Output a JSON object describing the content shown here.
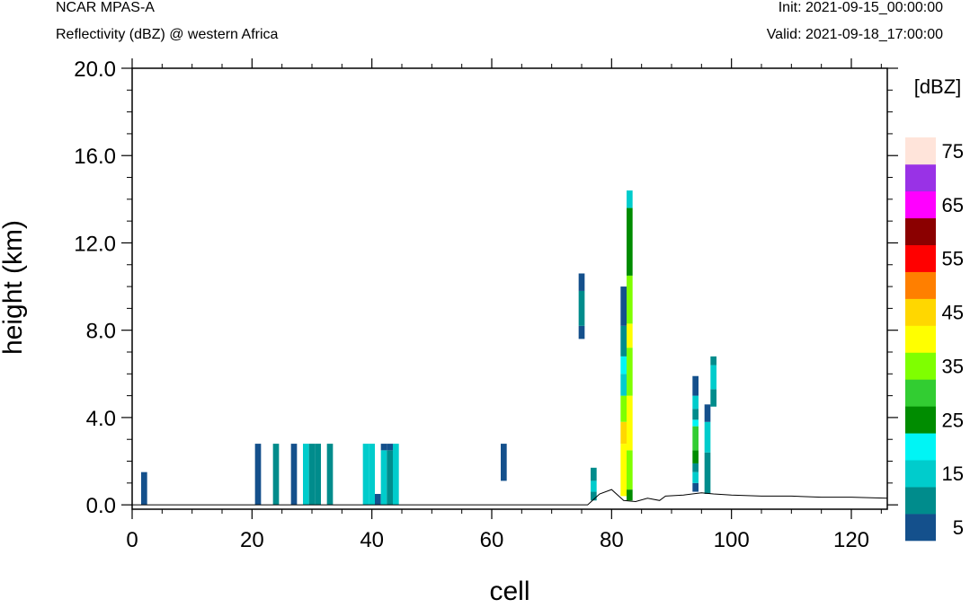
{
  "header": {
    "left_title": "NCAR MPAS-A",
    "left_subtitle": "Reflectivity (dBZ) @ western Africa",
    "right_title": "Init: 2021-09-15_00:00:00",
    "right_subtitle": "Valid: 2021-09-18_17:00:00"
  },
  "chart_data": {
    "type": "heatmap",
    "xlabel": "cell",
    "ylabel": "height (km)",
    "xlim": [
      0,
      126
    ],
    "ylim": [
      -0.2,
      20.0
    ],
    "x_ticks": [
      "0",
      "20",
      "40",
      "60",
      "80",
      "100",
      "120"
    ],
    "y_ticks": [
      "0.0",
      "4.0",
      "8.0",
      "12.0",
      "16.0",
      "20.0"
    ],
    "colorbar": {
      "unit": "[dBZ]",
      "levels": [
        5,
        10,
        15,
        20,
        25,
        30,
        35,
        40,
        45,
        50,
        55,
        60,
        65,
        70,
        75
      ],
      "labels": [
        "5",
        "15",
        "25",
        "35",
        "45",
        "55",
        "65",
        "75"
      ],
      "colors": [
        "#14508c",
        "#008c8c",
        "#00cccc",
        "#00f5f5",
        "#008c00",
        "#32cd32",
        "#7fff00",
        "#ffff00",
        "#ffd700",
        "#ff7f00",
        "#ff0000",
        "#8b0000",
        "#ff00ff",
        "#9932e6",
        "#ffe4da"
      ]
    },
    "columns": [
      {
        "cell": 2,
        "segments": [
          [
            0.0,
            1.5,
            5
          ]
        ]
      },
      {
        "cell": 21,
        "segments": [
          [
            0.0,
            2.8,
            5
          ]
        ]
      },
      {
        "cell": 24,
        "segments": [
          [
            0.0,
            2.8,
            10
          ]
        ]
      },
      {
        "cell": 27,
        "segments": [
          [
            0.0,
            2.8,
            5
          ]
        ]
      },
      {
        "cell": 29,
        "segments": [
          [
            0.0,
            2.8,
            15
          ]
        ]
      },
      {
        "cell": 30,
        "segments": [
          [
            0.0,
            2.8,
            10
          ]
        ]
      },
      {
        "cell": 31,
        "segments": [
          [
            0.0,
            2.8,
            10
          ]
        ]
      },
      {
        "cell": 33,
        "segments": [
          [
            0.0,
            2.8,
            10
          ]
        ]
      },
      {
        "cell": 39,
        "segments": [
          [
            0.0,
            2.8,
            15
          ]
        ]
      },
      {
        "cell": 40,
        "segments": [
          [
            0.0,
            2.8,
            15
          ]
        ]
      },
      {
        "cell": 41,
        "segments": [
          [
            0.0,
            0.5,
            5
          ]
        ]
      },
      {
        "cell": 42,
        "segments": [
          [
            0.0,
            2.5,
            15
          ],
          [
            2.5,
            2.8,
            5
          ]
        ]
      },
      {
        "cell": 43,
        "segments": [
          [
            0.0,
            2.5,
            10
          ],
          [
            2.5,
            2.8,
            5
          ]
        ]
      },
      {
        "cell": 44,
        "segments": [
          [
            0.0,
            2.8,
            15
          ]
        ]
      },
      {
        "cell": 62,
        "segments": [
          [
            1.1,
            2.8,
            5
          ]
        ]
      },
      {
        "cell": 75,
        "segments": [
          [
            7.6,
            8.2,
            5
          ],
          [
            8.2,
            9.8,
            10
          ],
          [
            9.8,
            10.6,
            5
          ]
        ]
      },
      {
        "cell": 77,
        "segments": [
          [
            0.2,
            0.6,
            10
          ],
          [
            0.6,
            1.1,
            15
          ],
          [
            1.1,
            1.7,
            10
          ]
        ]
      },
      {
        "cell": 82,
        "segments": [
          [
            0.4,
            2.8,
            40
          ],
          [
            2.8,
            3.8,
            45
          ],
          [
            3.8,
            5.0,
            35
          ],
          [
            5.0,
            6.0,
            15
          ],
          [
            6.0,
            6.8,
            20
          ],
          [
            6.8,
            8.2,
            10
          ],
          [
            8.2,
            10.0,
            5
          ]
        ]
      },
      {
        "cell": 83,
        "segments": [
          [
            0.2,
            0.7,
            25
          ],
          [
            0.7,
            2.5,
            35
          ],
          [
            2.5,
            5.0,
            40
          ],
          [
            5.0,
            7.2,
            35
          ],
          [
            7.2,
            8.3,
            40
          ],
          [
            8.3,
            10.5,
            35
          ],
          [
            10.5,
            13.6,
            25
          ],
          [
            13.6,
            14.4,
            15
          ]
        ]
      },
      {
        "cell": 94,
        "segments": [
          [
            0.6,
            1.0,
            5
          ],
          [
            1.0,
            1.5,
            15
          ],
          [
            1.5,
            1.9,
            10
          ],
          [
            1.9,
            2.5,
            25
          ],
          [
            2.5,
            3.6,
            30
          ],
          [
            3.6,
            3.9,
            20
          ],
          [
            3.9,
            4.4,
            10
          ],
          [
            4.4,
            5.0,
            15
          ],
          [
            5.0,
            5.9,
            5
          ]
        ]
      },
      {
        "cell": 96,
        "segments": [
          [
            0.5,
            2.4,
            10
          ],
          [
            2.4,
            3.8,
            15
          ],
          [
            3.8,
            4.6,
            5
          ]
        ]
      },
      {
        "cell": 97,
        "segments": [
          [
            4.5,
            5.3,
            10
          ],
          [
            5.3,
            6.4,
            15
          ],
          [
            6.4,
            6.8,
            10
          ]
        ]
      }
    ],
    "terrain": [
      [
        0,
        0.0
      ],
      [
        76,
        0.0
      ],
      [
        78,
        0.5
      ],
      [
        80,
        0.7
      ],
      [
        82,
        0.2
      ],
      [
        84,
        0.15
      ],
      [
        86,
        0.3
      ],
      [
        88,
        0.2
      ],
      [
        89,
        0.4
      ],
      [
        92,
        0.45
      ],
      [
        95,
        0.55
      ],
      [
        97,
        0.5
      ],
      [
        100,
        0.45
      ],
      [
        105,
        0.4
      ],
      [
        110,
        0.4
      ],
      [
        115,
        0.35
      ],
      [
        120,
        0.35
      ],
      [
        126,
        0.3
      ]
    ]
  }
}
